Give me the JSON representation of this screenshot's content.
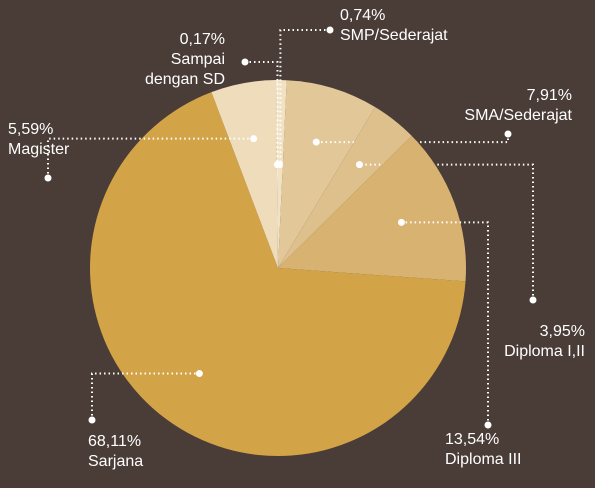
{
  "chart_data": {
    "type": "pie",
    "categories": [
      "SMP/Sederajat",
      "SMA/Sederajat",
      "Diploma I,II",
      "Diploma III",
      "Sarjana",
      "Magister",
      "Sampai dengan SD"
    ],
    "values": [
      0.74,
      7.91,
      3.95,
      13.54,
      68.11,
      5.59,
      0.17
    ],
    "value_labels": [
      "0,74%",
      "7,91%",
      "3,95%",
      "13,54%",
      "68,11%",
      "5,59%",
      "0,17%"
    ],
    "colors": [
      "#f2e2c4",
      "#e2c899",
      "#dec08c",
      "#d8b271",
      "#d3a347",
      "#efdcbb",
      "#f6ead3"
    ]
  }
}
